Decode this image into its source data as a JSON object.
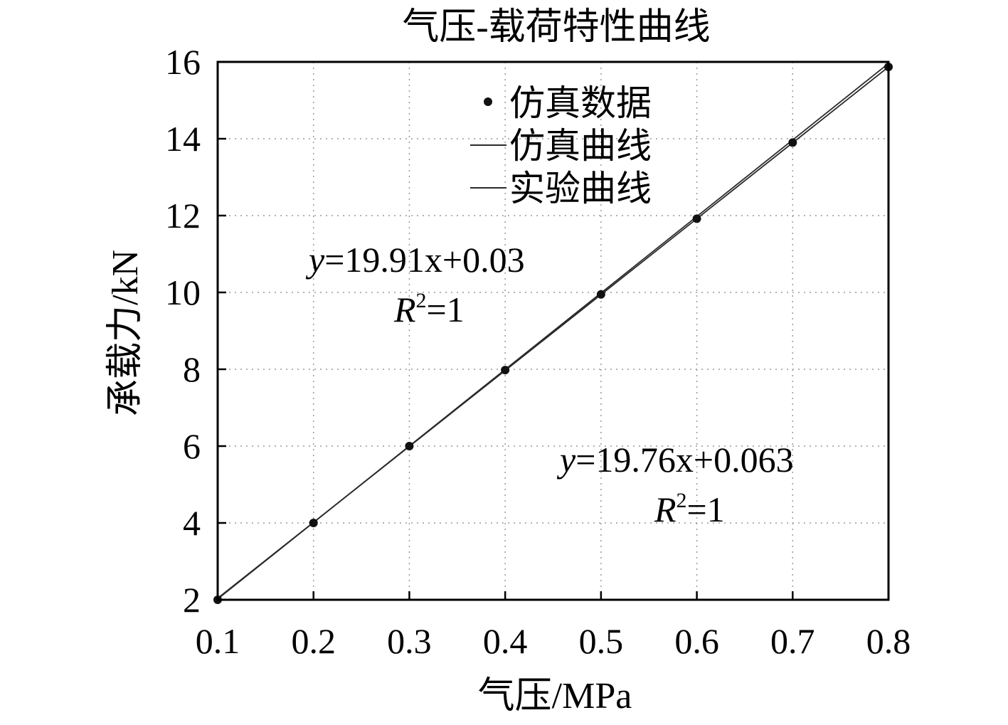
{
  "chart_data": {
    "type": "scatter",
    "title": "气压-载荷特性曲线",
    "xlabel": "气压/MPa",
    "ylabel": "承载力/kN",
    "xlim": [
      0.1,
      0.8
    ],
    "ylim": [
      2,
      16
    ],
    "x_ticks": [
      "0.1",
      "0.2",
      "0.3",
      "0.4",
      "0.5",
      "0.6",
      "0.7",
      "0.8"
    ],
    "y_ticks": [
      "2",
      "4",
      "6",
      "8",
      "10",
      "12",
      "14",
      "16"
    ],
    "grid": true,
    "legend_position": "top-center",
    "legend": [
      {
        "label": "仿真数据",
        "marker": "dot"
      },
      {
        "label": "仿真曲线",
        "marker": "line"
      },
      {
        "label": "实验曲线",
        "marker": "line"
      }
    ],
    "series": [
      {
        "name": "仿真数据",
        "kind": "scatter",
        "x": [
          0.1,
          0.2,
          0.3,
          0.4,
          0.5,
          0.6,
          0.7,
          0.8
        ],
        "y": [
          2.0,
          4.0,
          6.0,
          7.98,
          9.95,
          11.92,
          13.9,
          15.87
        ]
      },
      {
        "name": "仿真曲线",
        "kind": "line",
        "x": [
          0.1,
          0.8
        ],
        "y": [
          2.02,
          15.96
        ]
      },
      {
        "name": "实验曲线",
        "kind": "line",
        "x": [
          0.1,
          0.8
        ],
        "y": [
          2.04,
          15.87
        ]
      }
    ],
    "annotations": [
      {
        "id": "eq1",
        "pre": "y",
        "text": "=19.91x+0.03"
      },
      {
        "id": "r1",
        "pre": "R",
        "sup": "2",
        "text": "=1"
      },
      {
        "id": "eq2",
        "pre": "y",
        "text": "=19.76x+0.063"
      },
      {
        "id": "r2",
        "pre": "R",
        "sup": "2",
        "text": "=1"
      }
    ],
    "colors": {
      "line": "#2a2a2a",
      "marker": "#111111",
      "grid": "#9a9a9a",
      "axis": "#000000"
    }
  }
}
